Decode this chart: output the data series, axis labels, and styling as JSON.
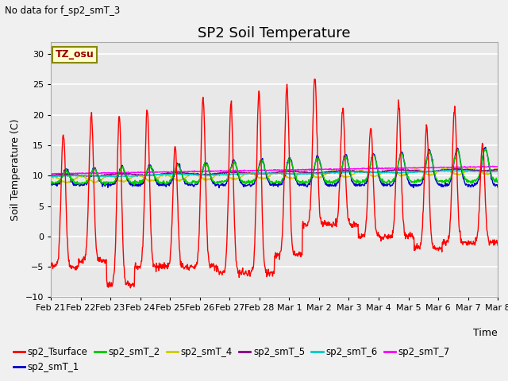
{
  "title": "SP2 Soil Temperature",
  "ylabel": "Soil Temperature (C)",
  "xlabel": "Time",
  "subtitle": "No data for f_sp2_smT_3",
  "tz_label": "TZ_osu",
  "ylim": [
    -10,
    32
  ],
  "yticks": [
    -10,
    -5,
    0,
    5,
    10,
    15,
    20,
    25,
    30
  ],
  "date_labels": [
    "Feb 21",
    "Feb 22",
    "Feb 23",
    "Feb 24",
    "Feb 25",
    "Feb 26",
    "Feb 27",
    "Feb 28",
    "Mar 1",
    "Mar 2",
    "Mar 3",
    "Mar 4",
    "Mar 5",
    "Mar 6",
    "Mar 7",
    "Mar 8"
  ],
  "series_colors": {
    "sp2_Tsurface": "#ff0000",
    "sp2_smT_1": "#0000cc",
    "sp2_smT_2": "#00cc00",
    "sp2_smT_4": "#cccc00",
    "sp2_smT_5": "#880088",
    "sp2_smT_6": "#00cccc",
    "sp2_smT_7": "#ff00ff"
  },
  "background_color": "#e8e8e8",
  "fig_background": "#f0f0f0",
  "title_fontsize": 13,
  "label_fontsize": 9,
  "tick_fontsize": 8
}
